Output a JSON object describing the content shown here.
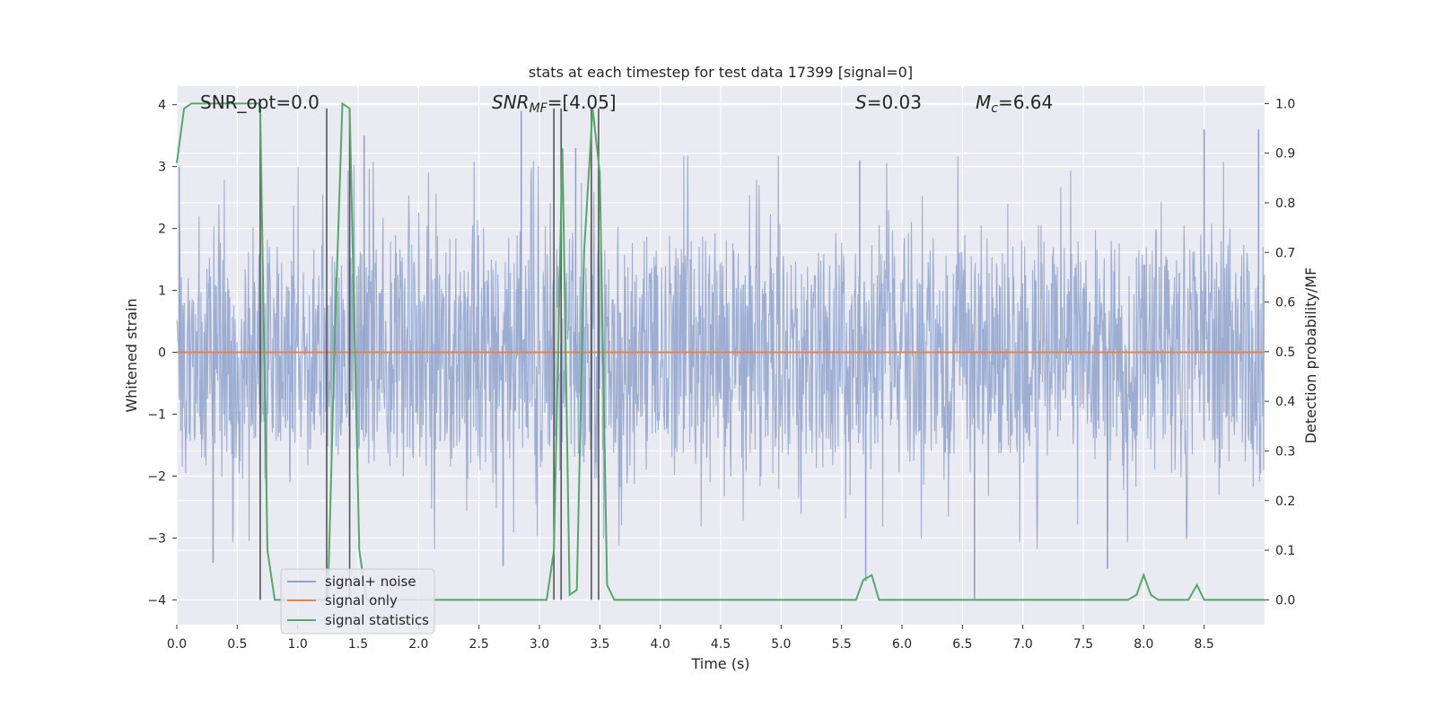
{
  "chart_data": {
    "type": "line",
    "title": "stats at each timestep for test data 17399 [signal=0]",
    "xlabel": "Time (s)",
    "ylabel_left": "Whitened strain",
    "ylabel_right": "Detection probability/MF",
    "xlim": [
      0.0,
      9.0
    ],
    "ylim_left": [
      -4.4,
      4.3
    ],
    "ylim_right": [
      -0.05,
      1.035
    ],
    "x_ticks": [
      "0.0",
      "0.5",
      "1.0",
      "1.5",
      "2.0",
      "2.5",
      "3.0",
      "3.5",
      "4.0",
      "4.5",
      "5.0",
      "5.5",
      "6.0",
      "6.5",
      "7.0",
      "7.5",
      "8.0",
      "8.5"
    ],
    "y_left_ticks": [
      "4",
      "3",
      "2",
      "1",
      "0",
      "−1",
      "−2",
      "−3",
      "−4"
    ],
    "y_right_ticks": [
      "1.0",
      "0.9",
      "0.8",
      "0.7",
      "0.6",
      "0.5",
      "0.4",
      "0.3",
      "0.2",
      "0.1",
      "0.0"
    ],
    "grid": true,
    "legend_position": "lower-left",
    "annotations": [
      {
        "text": "SNR_opt=0.0",
        "x": 0.2,
        "y": 4.0
      },
      {
        "text": "SNR_MF=[4.05]",
        "x": 2.6,
        "y": 4.0
      },
      {
        "text": "S=0.03",
        "x": 5.6,
        "y": 4.0
      },
      {
        "text": "M_c=6.64",
        "x": 6.6,
        "y": 4.0
      }
    ],
    "series": [
      {
        "name": "signal+ noise",
        "axis": "left",
        "color": "#8fa3cc",
        "description_envelope": {
          "typical_max": 2.3,
          "typical_min": -2.3,
          "peak_max": 3.9,
          "peak_min": -4.0
        },
        "peaks": [
          [
            0.02,
            3.0
          ],
          [
            1.55,
            3.5
          ],
          [
            2.85,
            3.9
          ],
          [
            3.3,
            3.3
          ],
          [
            5.65,
            3.1
          ],
          [
            8.5,
            3.6
          ],
          [
            8.95,
            3.6
          ],
          [
            0.3,
            -3.4
          ],
          [
            2.7,
            -3.45
          ],
          [
            6.6,
            -4.0
          ],
          [
            5.7,
            -3.7
          ],
          [
            7.7,
            -3.5
          ]
        ]
      },
      {
        "name": "signal only",
        "axis": "left",
        "color": "#dd8452",
        "x": [
          0.0,
          9.0
        ],
        "y": [
          0.0,
          0.0
        ]
      },
      {
        "name": "signal statistics",
        "axis": "right",
        "color": "#55a868",
        "x": [
          0.0,
          0.06,
          0.12,
          0.68,
          0.69,
          0.75,
          0.81,
          1.25,
          1.31,
          1.37,
          1.43,
          1.51,
          1.57,
          3.06,
          3.12,
          3.19,
          3.25,
          3.31,
          3.37,
          3.44,
          3.5,
          3.56,
          3.62,
          3.69,
          5.62,
          5.68,
          5.75,
          5.81,
          7.87,
          7.94,
          8.0,
          8.06,
          8.12,
          8.37,
          8.44,
          8.5,
          8.56,
          9.0
        ],
        "y": [
          0.88,
          0.99,
          1.0,
          1.0,
          0.99,
          0.1,
          0.0,
          0.0,
          0.55,
          1.0,
          0.99,
          0.1,
          0.0,
          0.0,
          0.1,
          0.91,
          0.01,
          0.02,
          0.7,
          0.99,
          0.86,
          0.03,
          0.0,
          0.0,
          0.0,
          0.04,
          0.05,
          0.0,
          0.0,
          0.01,
          0.05,
          0.01,
          0.0,
          0.0,
          0.03,
          0.0,
          0.0,
          0.0
        ]
      }
    ],
    "vertical_markers": {
      "color": "#555555",
      "x": [
        0.69,
        1.24,
        1.43,
        3.12,
        3.18,
        3.43,
        3.49
      ],
      "top_prob": 0.99,
      "bottom_strain": -4.0
    }
  }
}
